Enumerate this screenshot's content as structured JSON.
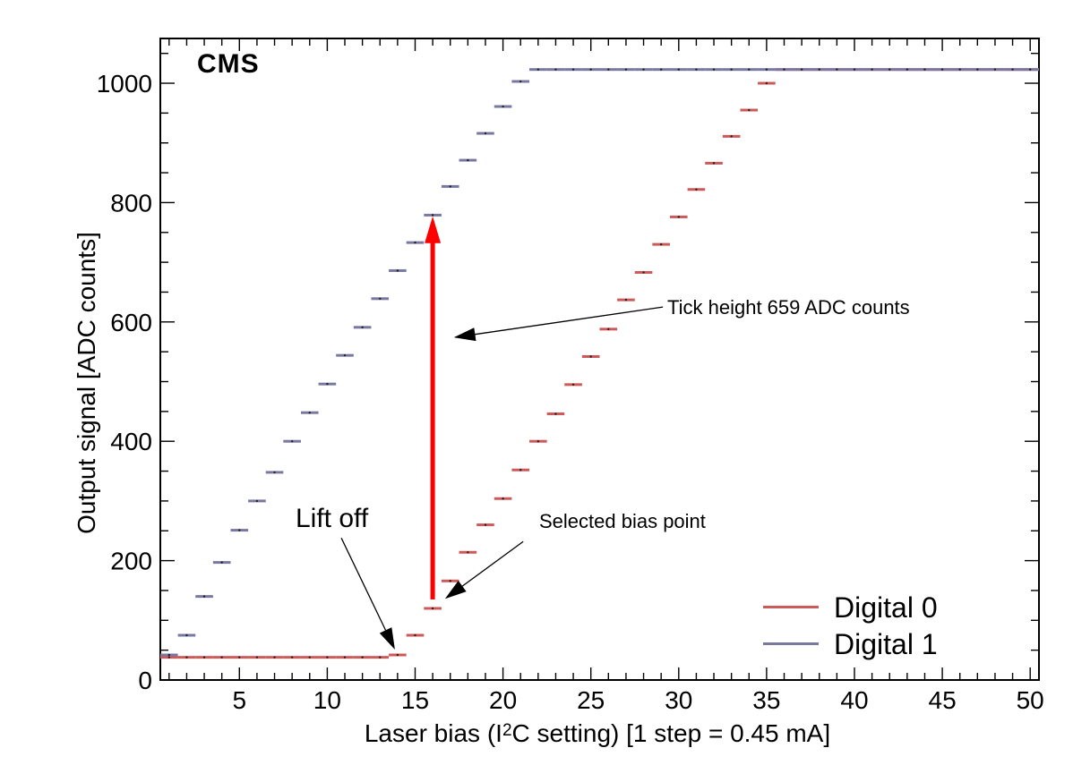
{
  "title_label": "CMS",
  "annotations": {
    "lift_off": "Lift off",
    "selected_bias": "Selected bias point",
    "tick_height": "Tick height 659 ADC counts"
  },
  "legend": {
    "position": "bottom-right",
    "entries": [
      {
        "label": "Digital 0",
        "color": "#cd5a5a"
      },
      {
        "label": "Digital 1",
        "color": "#7878a0"
      }
    ]
  },
  "chart_data": {
    "type": "scatter",
    "title": "",
    "xlabel": "Laser bias (I²C setting) [1 step = 0.45 mA]",
    "xlabel_parts": {
      "pre": "Laser bias (I",
      "sup": "2",
      "post": "C setting) [1 step = 0.45 mA]"
    },
    "ylabel": "Output signal [ADC counts]",
    "xlim": [
      0.5,
      50.5
    ],
    "ylim": [
      0,
      1075
    ],
    "grid": false,
    "x_major_ticks": [
      5,
      10,
      15,
      20,
      25,
      30,
      35,
      40,
      45,
      50
    ],
    "x_minor_step": 1,
    "y_major_ticks": [
      0,
      200,
      400,
      600,
      800,
      1000
    ],
    "y_minor_step": 50,
    "x": [
      1,
      2,
      3,
      4,
      5,
      6,
      7,
      8,
      9,
      10,
      11,
      12,
      13,
      14,
      15,
      16,
      17,
      18,
      19,
      20,
      21,
      22,
      23,
      24,
      25,
      26,
      27,
      28,
      29,
      30,
      31,
      32,
      33,
      34,
      35,
      36,
      37,
      38,
      39,
      40,
      41,
      42,
      43,
      44,
      45,
      46,
      47,
      48,
      49,
      50
    ],
    "series": [
      {
        "name": "Digital 0",
        "color": "#cd5a5a",
        "values": [
          38,
          38,
          38,
          38,
          38,
          38,
          38,
          38,
          38,
          38,
          38,
          38,
          38,
          42,
          75,
          120,
          166,
          214,
          260,
          304,
          352,
          400,
          446,
          495,
          542,
          588,
          637,
          683,
          730,
          776,
          822,
          866,
          911,
          955,
          1000,
          1023,
          1023,
          1023,
          1023,
          1023,
          1023,
          1023,
          1023,
          1023,
          1023,
          1023,
          1023,
          1023,
          1023,
          1023
        ]
      },
      {
        "name": "Digital 1",
        "color": "#7878a0",
        "values": [
          42,
          75,
          140,
          197,
          251,
          300,
          348,
          400,
          448,
          496,
          544,
          591,
          639,
          686,
          733,
          779,
          827,
          871,
          916,
          961,
          1003,
          1023,
          1023,
          1023,
          1023,
          1023,
          1023,
          1023,
          1023,
          1023,
          1023,
          1023,
          1023,
          1023,
          1023,
          1023,
          1023,
          1023,
          1023,
          1023,
          1023,
          1023,
          1023,
          1023,
          1023,
          1023,
          1023,
          1023,
          1023,
          1023
        ]
      }
    ],
    "saturation_adc": 1023,
    "tick_height_adc_counts": 659,
    "selected_bias_point": 16,
    "red_arrow": {
      "color": "#ff0000",
      "bias": 16,
      "from_adc": 135,
      "to_adc": 777
    },
    "annotation_arrows": [
      {
        "name": "lift-off-arrow",
        "from": [
          10.8,
          238
        ],
        "to": [
          13.85,
          51
        ]
      },
      {
        "name": "selected-bias-arrow",
        "from": [
          21.15,
          232
        ],
        "to": [
          16.7,
          136
        ]
      },
      {
        "name": "tick-height-arrow",
        "from": [
          29.1,
          625
        ],
        "to": [
          17.2,
          574
        ]
      }
    ]
  }
}
